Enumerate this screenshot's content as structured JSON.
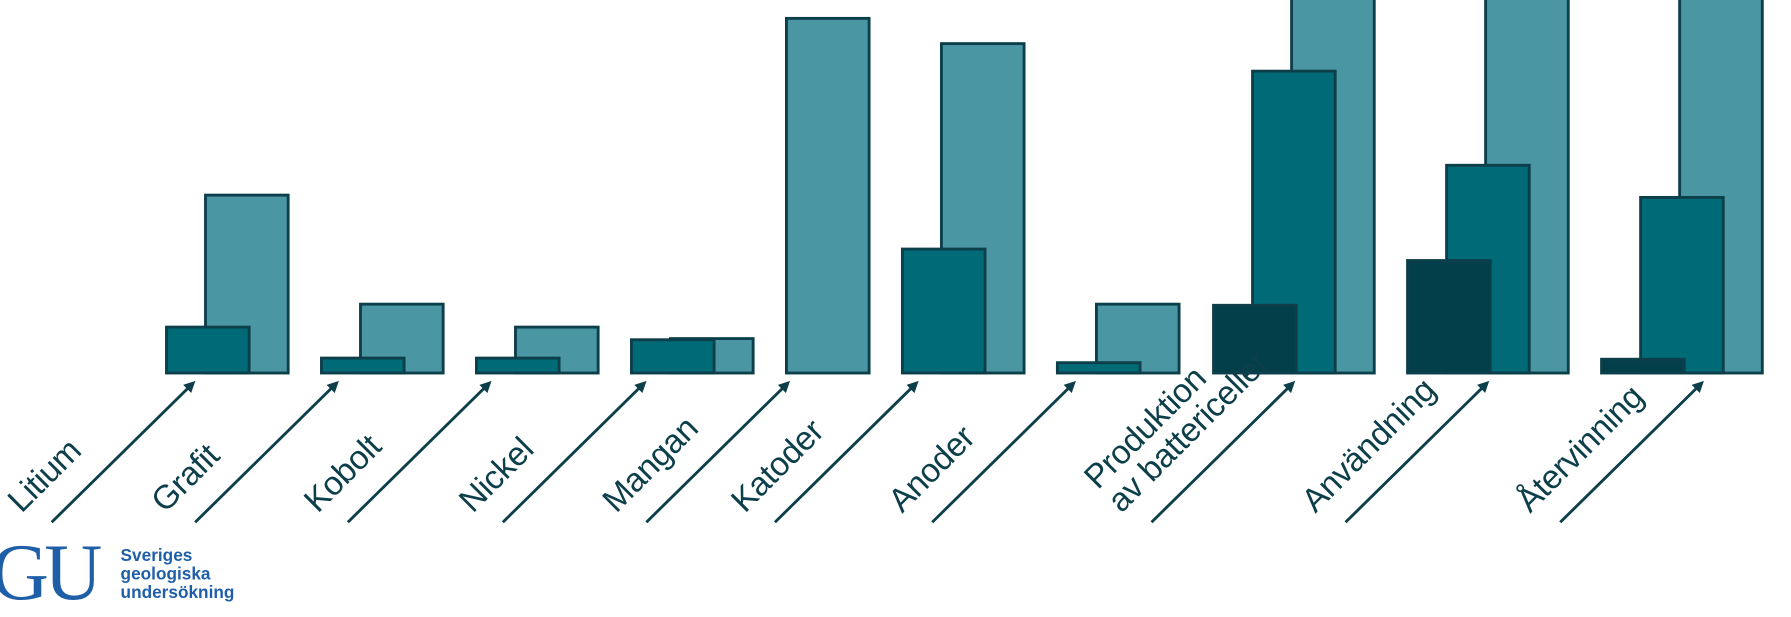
{
  "chart_data": {
    "type": "bar",
    "categories": [
      "Litium",
      "Grafit",
      "Kobolt",
      "Nickel",
      "Mangan",
      "Katoder",
      "Anoder",
      "Produktion\nav battericeller",
      "Användning",
      "Återvinning"
    ],
    "series": [
      {
        "color": "#023f4b",
        "values": [
          null,
          null,
          null,
          null,
          null,
          null,
          null,
          59,
          98,
          12
        ]
      },
      {
        "color": "#006a76",
        "values": [
          40,
          13,
          13,
          29,
          null,
          108,
          9,
          263,
          181,
          153
        ]
      },
      {
        "color": "#4a97a3",
        "values": [
          155,
          60,
          40,
          30,
          309,
          287,
          60,
          340,
          340,
          340
        ]
      }
    ],
    "ylim": [
      0,
      325
    ]
  },
  "logo": {
    "mark": "GU",
    "lines": [
      "Sveriges",
      "geologiska",
      "undersökning"
    ]
  }
}
